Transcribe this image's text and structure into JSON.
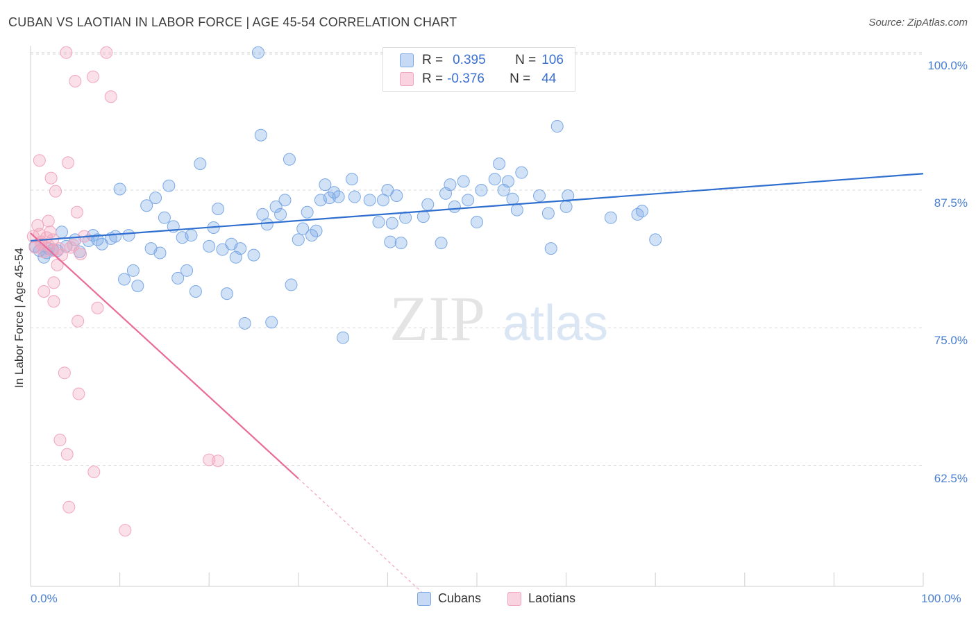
{
  "title": "CUBAN VS LAOTIAN IN LABOR FORCE | AGE 45-54 CORRELATION CHART",
  "source": "Source: ZipAtlas.com",
  "watermark": {
    "zip": "ZIP",
    "atlas": "atlas"
  },
  "colors": {
    "blue": "#7aa8e6",
    "blue_line": "#2f6fcf",
    "pink": "#f2a5bd",
    "pink_line": "#e96b97",
    "grid": "#d9d9d9",
    "tick_text": "#4a7fd1"
  },
  "legend": {
    "row1": {
      "r_label": "R =",
      "r_value": "0.395",
      "n_label": "N =",
      "n_value": "106"
    },
    "row2": {
      "r_label": "R =",
      "r_value": "-0.376",
      "n_label": "N =",
      "n_value": "44"
    }
  },
  "bottom_legend": {
    "cubans": "Cubans",
    "laotians": "Laotians"
  },
  "chart_data": {
    "type": "scatter",
    "title": "CUBAN VS LAOTIAN IN LABOR FORCE | AGE 45-54 CORRELATION CHART",
    "xlabel": "",
    "ylabel": "In Labor Force | Age 45-54",
    "x_tick_labels": [
      "0.0%",
      "100.0%"
    ],
    "y_tick_labels": [
      "100.0%",
      "87.5%",
      "75.0%",
      "62.5%"
    ],
    "y_ticks": [
      100.0,
      87.5,
      75.0,
      62.5
    ],
    "xlim": [
      0,
      100
    ],
    "ylim": [
      51.5,
      101.5
    ],
    "grid": true,
    "legend_position": "top-center",
    "series": [
      {
        "name": "Cubans",
        "color": "#7aa8e6",
        "trend": {
          "x": [
            0,
            100
          ],
          "y": [
            82.9,
            89.0
          ]
        },
        "points": [
          [
            0.5,
            82.4
          ],
          [
            1.0,
            82.0
          ],
          [
            1.5,
            81.4
          ],
          [
            2.0,
            82.2
          ],
          [
            2.5,
            82.1
          ],
          [
            3.0,
            82.0
          ],
          [
            3.5,
            83.7
          ],
          [
            4.0,
            82.4
          ],
          [
            5.0,
            83.0
          ],
          [
            5.5,
            81.9
          ],
          [
            6.5,
            82.9
          ],
          [
            7.0,
            83.4
          ],
          [
            7.5,
            83.0
          ],
          [
            8.0,
            82.6
          ],
          [
            9.0,
            83.1
          ],
          [
            9.5,
            83.3
          ],
          [
            10.0,
            87.6
          ],
          [
            10.5,
            79.4
          ],
          [
            11.0,
            83.4
          ],
          [
            11.5,
            80.2
          ],
          [
            12.0,
            78.8
          ],
          [
            13.0,
            86.1
          ],
          [
            13.5,
            82.2
          ],
          [
            14.0,
            86.8
          ],
          [
            14.5,
            81.8
          ],
          [
            15.0,
            85.0
          ],
          [
            15.5,
            87.9
          ],
          [
            16.0,
            84.2
          ],
          [
            16.5,
            79.5
          ],
          [
            17.0,
            83.2
          ],
          [
            17.5,
            80.2
          ],
          [
            18.0,
            83.4
          ],
          [
            18.5,
            78.3
          ],
          [
            19.0,
            89.9
          ],
          [
            20.0,
            82.4
          ],
          [
            20.5,
            84.1
          ],
          [
            21.0,
            85.8
          ],
          [
            21.5,
            82.1
          ],
          [
            22.0,
            78.1
          ],
          [
            22.5,
            82.6
          ],
          [
            23.0,
            81.4
          ],
          [
            23.5,
            82.2
          ],
          [
            24.0,
            75.4
          ],
          [
            25.0,
            81.6
          ],
          [
            25.5,
            100.0
          ],
          [
            25.8,
            92.5
          ],
          [
            26.0,
            85.3
          ],
          [
            26.5,
            84.4
          ],
          [
            27.0,
            75.5
          ],
          [
            27.5,
            86.0
          ],
          [
            28.0,
            85.3
          ],
          [
            28.5,
            86.6
          ],
          [
            29.0,
            90.3
          ],
          [
            29.2,
            78.9
          ],
          [
            30.0,
            83.0
          ],
          [
            30.5,
            84.0
          ],
          [
            31.0,
            85.5
          ],
          [
            31.5,
            83.4
          ],
          [
            32.0,
            83.8
          ],
          [
            32.5,
            86.6
          ],
          [
            33.0,
            88.0
          ],
          [
            33.5,
            86.8
          ],
          [
            34.0,
            87.3
          ],
          [
            34.5,
            86.9
          ],
          [
            35.0,
            74.1
          ],
          [
            36.0,
            88.5
          ],
          [
            36.3,
            86.9
          ],
          [
            38.0,
            86.6
          ],
          [
            39.0,
            84.6
          ],
          [
            39.5,
            86.6
          ],
          [
            40.0,
            87.5
          ],
          [
            40.3,
            82.8
          ],
          [
            40.5,
            84.5
          ],
          [
            41.0,
            87.0
          ],
          [
            41.5,
            82.7
          ],
          [
            42.0,
            85.0
          ],
          [
            44.0,
            85.1
          ],
          [
            44.5,
            86.2
          ],
          [
            46.0,
            82.7
          ],
          [
            46.5,
            87.2
          ],
          [
            47.0,
            88.0
          ],
          [
            47.5,
            86.0
          ],
          [
            48.5,
            88.3
          ],
          [
            49.0,
            86.6
          ],
          [
            50.0,
            84.6
          ],
          [
            50.5,
            87.5
          ],
          [
            52.0,
            88.5
          ],
          [
            52.5,
            89.9
          ],
          [
            53.0,
            87.5
          ],
          [
            53.5,
            88.3
          ],
          [
            54.0,
            86.7
          ],
          [
            54.5,
            85.7
          ],
          [
            55.0,
            89.1
          ],
          [
            57.0,
            87.0
          ],
          [
            58.0,
            85.4
          ],
          [
            58.3,
            82.2
          ],
          [
            59.0,
            93.3
          ],
          [
            60.0,
            86.0
          ],
          [
            60.2,
            87.0
          ],
          [
            65.0,
            85.0
          ],
          [
            68.0,
            85.3
          ],
          [
            68.5,
            85.6
          ],
          [
            70.0,
            83.0
          ],
          [
            1.8,
            81.8
          ]
        ]
      },
      {
        "name": "Laotians",
        "color": "#f2a5bd",
        "trend": {
          "x": [
            0,
            30
          ],
          "y": [
            83.6,
            61.3
          ]
        },
        "trend_extension": {
          "x": [
            30,
            45
          ],
          "y": [
            61.3,
            50.1
          ]
        },
        "points": [
          [
            0.3,
            83.3
          ],
          [
            0.5,
            82.3
          ],
          [
            0.8,
            84.3
          ],
          [
            1.0,
            83.5
          ],
          [
            1.2,
            82.6
          ],
          [
            1.5,
            81.9
          ],
          [
            1.8,
            83.2
          ],
          [
            2.0,
            82.5
          ],
          [
            2.2,
            83.7
          ],
          [
            2.5,
            83.0
          ],
          [
            1.0,
            90.2
          ],
          [
            1.5,
            78.3
          ],
          [
            2.0,
            84.7
          ],
          [
            2.3,
            88.6
          ],
          [
            2.6,
            79.1
          ],
          [
            2.6,
            77.4
          ],
          [
            2.8,
            87.4
          ],
          [
            3.0,
            80.7
          ],
          [
            3.2,
            82.2
          ],
          [
            3.3,
            64.8
          ],
          [
            3.5,
            81.6
          ],
          [
            3.8,
            70.9
          ],
          [
            4.0,
            100.0
          ],
          [
            4.1,
            63.5
          ],
          [
            4.2,
            90.0
          ],
          [
            4.3,
            58.7
          ],
          [
            4.5,
            82.3
          ],
          [
            4.8,
            82.5
          ],
          [
            5.0,
            97.4
          ],
          [
            5.2,
            85.5
          ],
          [
            5.3,
            75.6
          ],
          [
            5.4,
            69.0
          ],
          [
            5.6,
            81.7
          ],
          [
            6.0,
            83.3
          ],
          [
            7.0,
            97.8
          ],
          [
            7.1,
            61.9
          ],
          [
            7.5,
            76.8
          ],
          [
            8.5,
            100.0
          ],
          [
            9.0,
            96.0
          ],
          [
            10.6,
            56.6
          ],
          [
            20.0,
            63.0
          ],
          [
            21.0,
            62.9
          ],
          [
            2.5,
            82.0
          ],
          [
            1.2,
            82.8
          ]
        ]
      }
    ]
  }
}
